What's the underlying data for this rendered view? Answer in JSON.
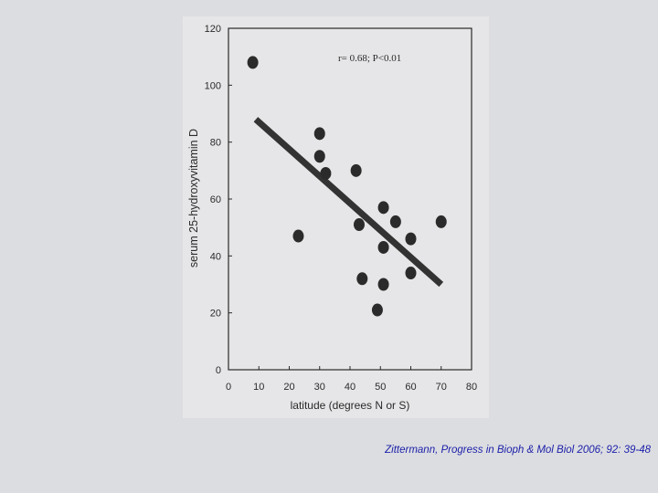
{
  "chart_data": {
    "type": "scatter",
    "title": "",
    "xlabel": "latitude (degrees N or S)",
    "ylabel": "serum 25-hydroxyvitamin D",
    "annotation": "r= 0.68; P<0.01",
    "xlim": [
      0,
      80
    ],
    "ylim": [
      0,
      120
    ],
    "xticks": [
      0,
      10,
      20,
      30,
      40,
      50,
      60,
      70,
      80
    ],
    "yticks": [
      0,
      20,
      40,
      60,
      80,
      100,
      120
    ],
    "grid": false,
    "series": [
      {
        "points": [
          {
            "x": 8,
            "y": 108
          },
          {
            "x": 23,
            "y": 47
          },
          {
            "x": 30,
            "y": 83
          },
          {
            "x": 30,
            "y": 75
          },
          {
            "x": 32,
            "y": 69
          },
          {
            "x": 42,
            "y": 70
          },
          {
            "x": 43,
            "y": 51
          },
          {
            "x": 44,
            "y": 32
          },
          {
            "x": 49,
            "y": 21
          },
          {
            "x": 51,
            "y": 57
          },
          {
            "x": 51,
            "y": 43
          },
          {
            "x": 51,
            "y": 30
          },
          {
            "x": 55,
            "y": 52
          },
          {
            "x": 60,
            "y": 46
          },
          {
            "x": 60,
            "y": 34
          },
          {
            "x": 70,
            "y": 52
          }
        ]
      }
    ],
    "fit_line": {
      "x": [
        9,
        70
      ],
      "y": [
        88,
        30
      ]
    }
  },
  "citation": "Zittermann, Progress in Bioph & Mol Biol 2006; 92: 39-48",
  "colors": {
    "background": "#dcdde1",
    "panel": "#e6e6e8",
    "ink": "#2a2a2a",
    "citation": "#1b1fa8"
  }
}
